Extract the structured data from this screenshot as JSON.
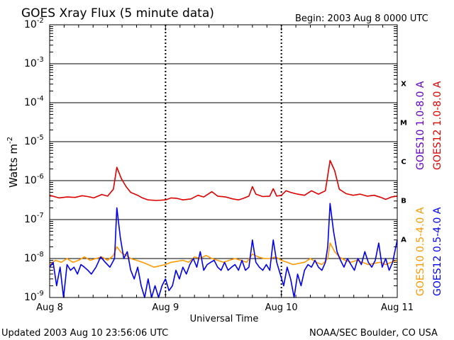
{
  "chart_data": {
    "type": "line",
    "title": "GOES Xray Flux (5 minute data)",
    "begin_label": "Begin:  2003 Aug 8 0000 UTC",
    "ylabel_main": "Watts m",
    "ylabel_sup": "-2",
    "xlabel": "Universal Time",
    "y_scale": "log",
    "ylim": [
      1e-09,
      0.01
    ],
    "y_ticks": [
      {
        "exp": -9,
        "text": "-9"
      },
      {
        "exp": -8,
        "text": "-8"
      },
      {
        "exp": -7,
        "text": "-7"
      },
      {
        "exp": -6,
        "text": "-6"
      },
      {
        "exp": -5,
        "text": "-5"
      },
      {
        "exp": -4,
        "text": "-4"
      },
      {
        "exp": -3,
        "text": "-3"
      },
      {
        "exp": -2,
        "text": "-2"
      }
    ],
    "x_range_days": [
      0,
      3
    ],
    "x_ticks": [
      {
        "day": 0,
        "label": "Aug 8"
      },
      {
        "day": 1,
        "label": "Aug 9"
      },
      {
        "day": 2,
        "label": "Aug 10"
      },
      {
        "day": 3,
        "label": "Aug 11"
      }
    ],
    "flare_classes": [
      {
        "label": "X",
        "exp": -4
      },
      {
        "label": "M",
        "exp": -5
      },
      {
        "label": "C",
        "exp": -6
      },
      {
        "label": "B",
        "exp": -7
      },
      {
        "label": "A",
        "exp": -8
      }
    ],
    "legend": [
      {
        "name": "GOES10 1.0-8.0 A",
        "color": "#6600cc"
      },
      {
        "name": "GOES12 1.0-8.0 A",
        "color": "#dd0000"
      },
      {
        "name": "GOES10 0.5-4.0 A",
        "color": "#ff9900"
      },
      {
        "name": "GOES12 0.5-4.0 A",
        "color": "#0000ee"
      }
    ],
    "series": [
      {
        "name": "GOES12 1.0-8.0 A",
        "color": "#dd0000",
        "points": [
          [
            0.0,
            4.2e-07
          ],
          [
            0.08,
            3.6e-07
          ],
          [
            0.15,
            3.8e-07
          ],
          [
            0.22,
            3.7e-07
          ],
          [
            0.28,
            4.1e-07
          ],
          [
            0.33,
            3.9e-07
          ],
          [
            0.38,
            3.6e-07
          ],
          [
            0.45,
            4.4e-07
          ],
          [
            0.5,
            4e-07
          ],
          [
            0.55,
            6e-07
          ],
          [
            0.58,
            2.2e-06
          ],
          [
            0.62,
            1.1e-06
          ],
          [
            0.66,
            7e-07
          ],
          [
            0.7,
            5e-07
          ],
          [
            0.76,
            4.2e-07
          ],
          [
            0.8,
            3.6e-07
          ],
          [
            0.85,
            3.2e-07
          ],
          [
            0.92,
            3.1e-07
          ],
          [
            1.0,
            3.2e-07
          ],
          [
            1.05,
            3.6e-07
          ],
          [
            1.1,
            3.5e-07
          ],
          [
            1.15,
            3.2e-07
          ],
          [
            1.22,
            3.4e-07
          ],
          [
            1.28,
            4.2e-07
          ],
          [
            1.33,
            3.8e-07
          ],
          [
            1.4,
            5.2e-07
          ],
          [
            1.45,
            4e-07
          ],
          [
            1.52,
            3.8e-07
          ],
          [
            1.58,
            3.4e-07
          ],
          [
            1.63,
            3.2e-07
          ],
          [
            1.67,
            3.5e-07
          ],
          [
            1.72,
            4e-07
          ],
          [
            1.75,
            7e-07
          ],
          [
            1.78,
            4.5e-07
          ],
          [
            1.84,
            3.9e-07
          ],
          [
            1.9,
            4e-07
          ],
          [
            1.93,
            6.2e-07
          ],
          [
            1.96,
            4e-07
          ],
          [
            2.0,
            4.2e-07
          ],
          [
            2.04,
            5.5e-07
          ],
          [
            2.08,
            5e-07
          ],
          [
            2.14,
            4.5e-07
          ],
          [
            2.2,
            4.2e-07
          ],
          [
            2.26,
            5.5e-07
          ],
          [
            2.32,
            4.5e-07
          ],
          [
            2.38,
            5.5e-07
          ],
          [
            2.42,
            3.3e-06
          ],
          [
            2.46,
            1.8e-06
          ],
          [
            2.5,
            6e-07
          ],
          [
            2.56,
            4.6e-07
          ],
          [
            2.62,
            4.2e-07
          ],
          [
            2.68,
            4.5e-07
          ],
          [
            2.74,
            4e-07
          ],
          [
            2.8,
            4.2e-07
          ],
          [
            2.86,
            3.7e-07
          ],
          [
            2.9,
            3.3e-07
          ],
          [
            2.95,
            3.8e-07
          ],
          [
            3.0,
            4e-07
          ]
        ]
      },
      {
        "name": "GOES10 0.5-4.0 A",
        "color": "#ff9900",
        "points": [
          [
            0.0,
            7e-09
          ],
          [
            0.05,
            9e-09
          ],
          [
            0.1,
            8e-09
          ],
          [
            0.15,
            1e-08
          ],
          [
            0.2,
            8e-09
          ],
          [
            0.25,
            9e-09
          ],
          [
            0.3,
            1.1e-08
          ],
          [
            0.35,
            9e-09
          ],
          [
            0.4,
            1e-08
          ],
          [
            0.45,
            1.1e-08
          ],
          [
            0.5,
            9e-09
          ],
          [
            0.55,
            1.2e-08
          ],
          [
            0.58,
            2e-08
          ],
          [
            0.62,
            1.4e-08
          ],
          [
            0.66,
            1.2e-08
          ],
          [
            0.7,
            1e-08
          ],
          [
            0.75,
            9e-09
          ],
          [
            0.8,
            8e-09
          ],
          [
            0.85,
            7e-09
          ],
          [
            0.9,
            6e-09
          ],
          [
            0.95,
            6.5e-09
          ],
          [
            1.0,
            7e-09
          ],
          [
            1.05,
            8e-09
          ],
          [
            1.1,
            8.5e-09
          ],
          [
            1.15,
            9e-09
          ],
          [
            1.2,
            8e-09
          ],
          [
            1.25,
            1.1e-08
          ],
          [
            1.3,
            1e-08
          ],
          [
            1.35,
            1.2e-08
          ],
          [
            1.4,
            1e-08
          ],
          [
            1.45,
            9e-09
          ],
          [
            1.5,
            8e-09
          ],
          [
            1.55,
            9e-09
          ],
          [
            1.6,
            1e-08
          ],
          [
            1.65,
            9e-09
          ],
          [
            1.7,
            8e-09
          ],
          [
            1.75,
            1.3e-08
          ],
          [
            1.8,
            1.1e-08
          ],
          [
            1.85,
            1e-08
          ],
          [
            1.9,
            1e-08
          ],
          [
            1.95,
            1.1e-08
          ],
          [
            2.0,
            9e-09
          ],
          [
            2.05,
            8e-09
          ],
          [
            2.1,
            7e-09
          ],
          [
            2.15,
            7.5e-09
          ],
          [
            2.2,
            8e-09
          ],
          [
            2.25,
            1e-08
          ],
          [
            2.3,
            8e-09
          ],
          [
            2.35,
            7e-09
          ],
          [
            2.4,
            1e-08
          ],
          [
            2.42,
            2.5e-08
          ],
          [
            2.46,
            1.5e-08
          ],
          [
            2.5,
            1.1e-08
          ],
          [
            2.55,
            9e-09
          ],
          [
            2.6,
            8e-09
          ],
          [
            2.65,
            9e-09
          ],
          [
            2.7,
            8e-09
          ],
          [
            2.75,
            7e-09
          ],
          [
            2.8,
            7.5e-09
          ],
          [
            2.85,
            8e-09
          ],
          [
            2.9,
            7e-09
          ],
          [
            2.95,
            8e-09
          ],
          [
            3.0,
            9e-09
          ]
        ]
      },
      {
        "name": "GOES12 0.5-4.0 A",
        "color": "#0000ee",
        "points": [
          [
            0.0,
            6e-09
          ],
          [
            0.03,
            8e-09
          ],
          [
            0.06,
            2e-09
          ],
          [
            0.09,
            6e-09
          ],
          [
            0.12,
            1e-09
          ],
          [
            0.15,
            7e-09
          ],
          [
            0.18,
            5e-09
          ],
          [
            0.21,
            6e-09
          ],
          [
            0.24,
            4e-09
          ],
          [
            0.27,
            7e-09
          ],
          [
            0.3,
            6e-09
          ],
          [
            0.33,
            5e-09
          ],
          [
            0.36,
            4e-09
          ],
          [
            0.4,
            6e-09
          ],
          [
            0.44,
            1.1e-08
          ],
          [
            0.48,
            8e-09
          ],
          [
            0.52,
            6e-09
          ],
          [
            0.56,
            1e-08
          ],
          [
            0.58,
            2e-07
          ],
          [
            0.61,
            3.5e-08
          ],
          [
            0.64,
            1e-08
          ],
          [
            0.67,
            1.5e-08
          ],
          [
            0.7,
            5e-09
          ],
          [
            0.73,
            3e-09
          ],
          [
            0.76,
            6e-09
          ],
          [
            0.79,
            2e-09
          ],
          [
            0.82,
            1e-09
          ],
          [
            0.85,
            3e-09
          ],
          [
            0.88,
            1e-09
          ],
          [
            0.91,
            2e-09
          ],
          [
            0.94,
            1e-09
          ],
          [
            0.97,
            2e-09
          ],
          [
            1.0,
            3e-09
          ],
          [
            1.03,
            1.5e-09
          ],
          [
            1.06,
            2e-09
          ],
          [
            1.09,
            5e-09
          ],
          [
            1.12,
            3e-09
          ],
          [
            1.15,
            6e-09
          ],
          [
            1.18,
            4e-09
          ],
          [
            1.21,
            7e-09
          ],
          [
            1.24,
            1e-08
          ],
          [
            1.27,
            6e-09
          ],
          [
            1.3,
            1.5e-08
          ],
          [
            1.33,
            5e-09
          ],
          [
            1.36,
            7e-09
          ],
          [
            1.39,
            8e-09
          ],
          [
            1.42,
            9e-09
          ],
          [
            1.45,
            6e-09
          ],
          [
            1.48,
            5e-09
          ],
          [
            1.51,
            8e-09
          ],
          [
            1.54,
            5e-09
          ],
          [
            1.57,
            6e-09
          ],
          [
            1.6,
            7e-09
          ],
          [
            1.63,
            5e-09
          ],
          [
            1.66,
            9e-09
          ],
          [
            1.69,
            5e-09
          ],
          [
            1.72,
            6e-09
          ],
          [
            1.75,
            3e-08
          ],
          [
            1.78,
            8e-09
          ],
          [
            1.81,
            6e-09
          ],
          [
            1.84,
            5e-09
          ],
          [
            1.87,
            7e-09
          ],
          [
            1.9,
            5e-09
          ],
          [
            1.93,
            3e-08
          ],
          [
            1.96,
            8e-09
          ],
          [
            1.99,
            4e-09
          ],
          [
            2.02,
            2e-09
          ],
          [
            2.05,
            6e-09
          ],
          [
            2.08,
            3e-09
          ],
          [
            2.11,
            1e-09
          ],
          [
            2.14,
            4e-09
          ],
          [
            2.17,
            2e-09
          ],
          [
            2.2,
            5e-09
          ],
          [
            2.23,
            7e-09
          ],
          [
            2.26,
            6e-09
          ],
          [
            2.29,
            9e-09
          ],
          [
            2.32,
            6e-09
          ],
          [
            2.35,
            5e-09
          ],
          [
            2.38,
            8e-09
          ],
          [
            2.4,
            2e-08
          ],
          [
            2.42,
            2.6e-07
          ],
          [
            2.45,
            5e-08
          ],
          [
            2.48,
            1.5e-08
          ],
          [
            2.51,
            9e-09
          ],
          [
            2.54,
            6e-09
          ],
          [
            2.57,
            1e-08
          ],
          [
            2.6,
            7e-09
          ],
          [
            2.63,
            5e-09
          ],
          [
            2.66,
            1e-08
          ],
          [
            2.69,
            7e-09
          ],
          [
            2.72,
            1.5e-08
          ],
          [
            2.75,
            8e-09
          ],
          [
            2.78,
            6e-09
          ],
          [
            2.81,
            9e-09
          ],
          [
            2.84,
            2.5e-08
          ],
          [
            2.87,
            6e-09
          ],
          [
            2.9,
            1e-08
          ],
          [
            2.93,
            5e-09
          ],
          [
            2.96,
            8e-09
          ],
          [
            3.0,
            3e-08
          ]
        ]
      }
    ]
  },
  "footer": {
    "updated": "Updated 2003 Aug 10 23:56:06 UTC",
    "credit": "NOAA/SEC Boulder, CO USA"
  }
}
